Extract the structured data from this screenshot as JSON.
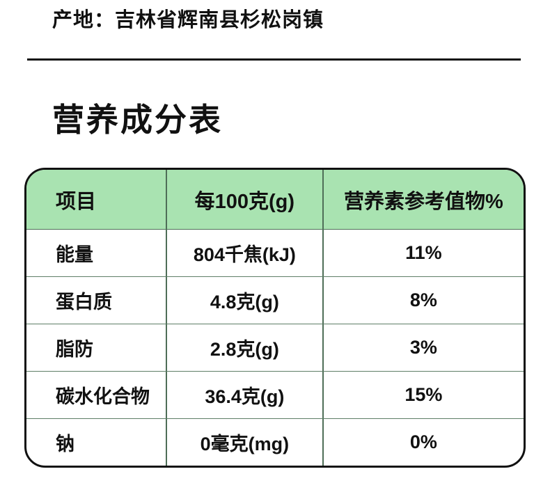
{
  "page": {
    "origin_label": "产地：吉林省辉南县杉松岗镇",
    "section_title": "营养成分表"
  },
  "colors": {
    "header_green": "#a9e3b1",
    "table_border": "#111111",
    "divider_line": "#4e6e57",
    "text": "#111111"
  },
  "table": {
    "headers": [
      "项目",
      "每100克(g)",
      "营养素参考值物%"
    ],
    "rows": [
      {
        "item": "能量",
        "per_100g": "804千焦(kJ)",
        "nrv": "11%"
      },
      {
        "item": "蛋白质",
        "per_100g": "4.8克(g)",
        "nrv": "8%"
      },
      {
        "item": "脂防",
        "per_100g": "2.8克(g)",
        "nrv": "3%"
      },
      {
        "item": "碳水化合物",
        "per_100g": "36.4克(g)",
        "nrv": "15%"
      },
      {
        "item": "钠",
        "per_100g": "0毫克(mg)",
        "nrv": "0%"
      }
    ]
  }
}
